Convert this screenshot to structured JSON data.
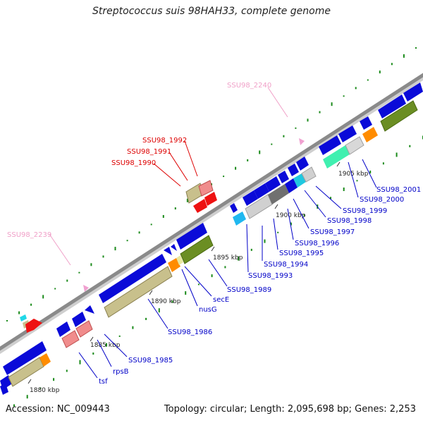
{
  "header": {
    "title": "Streptococcus suis 98HAH33, complete genome"
  },
  "footer": {
    "accession": "Accession: NC_009443",
    "summary": "Topology: circular; Length: 2,095,698 bp; Genes: 2,253"
  },
  "colors": {
    "backbone": "#8a8a8a",
    "cds_forward": "#0a0ad8",
    "label_blue": "#0000c8",
    "label_red": "#dd0000",
    "label_pink": "#f0a0c8",
    "tick_green": "#1a8a1a"
  },
  "scale": {
    "kbp_labels": [
      "1880 kbp",
      "1885 kbp",
      "1890 kbp",
      "1895 kbp",
      "1900 kbp",
      "1905 kbp"
    ]
  },
  "gene_labels": {
    "tsf": "tsf",
    "rpsB": "rpsB",
    "ssu1985": "SSU98_1985",
    "ssu1986": "SSU98_1986",
    "nusG": "nusG",
    "secE": "secE",
    "ssu1989": "SSU98_1989",
    "ssu1993": "SSU98_1993",
    "ssu1994": "SSU98_1994",
    "ssu1995": "SSU98_1995",
    "ssu1996": "SSU98_1996",
    "ssu1997": "SSU98_1997",
    "ssu1998": "SSU98_1998",
    "ssu1999": "SSU98_1999",
    "ssu2000": "SSU98_2000",
    "ssu2001": "SSU98_2001",
    "ssu1990": "SSU98_1990",
    "ssu1991": "SSU98_1991",
    "ssu1992": "SSU98_1992",
    "ssu2239": "SSU98_2239",
    "ssu2240": "SSU98_2240"
  }
}
